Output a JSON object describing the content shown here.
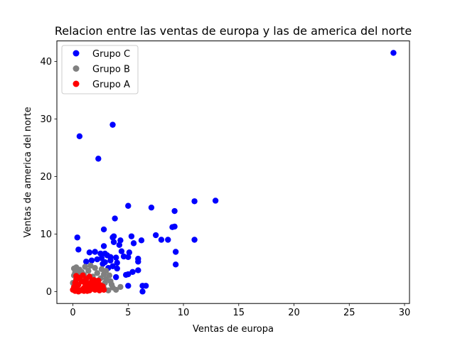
{
  "chart_data": {
    "type": "scatter",
    "title": "Relacion entre las ventas de europa y las de america del norte",
    "xlabel": "Ventas de europa",
    "ylabel": "Ventas de america del norte",
    "xlim": [
      -1.45,
      30.45
    ],
    "ylim": [
      -2.08,
      43.58
    ],
    "xticks": [
      0,
      5,
      10,
      15,
      20,
      25,
      30
    ],
    "yticks": [
      0,
      10,
      20,
      30,
      40
    ],
    "grid": false,
    "legend_position": "top-left",
    "series": [
      {
        "name": "Grupo C",
        "color": "#0000ff",
        "points": [
          [
            29.0,
            41.5
          ],
          [
            3.6,
            29.0
          ],
          [
            0.6,
            27.0
          ],
          [
            2.3,
            23.1
          ],
          [
            12.9,
            15.8
          ],
          [
            11.0,
            15.7
          ],
          [
            5.0,
            14.9
          ],
          [
            7.1,
            14.6
          ],
          [
            9.2,
            14.0
          ],
          [
            3.8,
            12.7
          ],
          [
            9.0,
            11.2
          ],
          [
            9.2,
            11.3
          ],
          [
            2.8,
            10.8
          ],
          [
            7.5,
            9.8
          ],
          [
            5.3,
            9.6
          ],
          [
            3.7,
            9.6
          ],
          [
            3.6,
            9.4
          ],
          [
            0.4,
            9.4
          ],
          [
            8.0,
            9.0
          ],
          [
            8.6,
            9.0
          ],
          [
            11.0,
            9.0
          ],
          [
            6.2,
            8.9
          ],
          [
            4.3,
            8.9
          ],
          [
            3.7,
            8.6
          ],
          [
            5.5,
            8.4
          ],
          [
            4.2,
            8.1
          ],
          [
            2.8,
            7.9
          ],
          [
            0.5,
            7.3
          ],
          [
            9.3,
            6.9
          ],
          [
            4.4,
            7.0
          ],
          [
            5.1,
            6.8
          ],
          [
            1.5,
            6.8
          ],
          [
            2.0,
            6.9
          ],
          [
            2.9,
            6.6
          ],
          [
            2.5,
            6.6
          ],
          [
            3.1,
            6.3
          ],
          [
            3.4,
            6.0
          ],
          [
            4.6,
            6.1
          ],
          [
            5.0,
            6.0
          ],
          [
            3.9,
            5.9
          ],
          [
            2.6,
            5.8
          ],
          [
            5.9,
            5.7
          ],
          [
            2.2,
            5.6
          ],
          [
            1.7,
            5.4
          ],
          [
            3.4,
            5.4
          ],
          [
            2.9,
            5.1
          ],
          [
            1.2,
            5.2
          ],
          [
            4.0,
            5.0
          ],
          [
            5.9,
            5.2
          ],
          [
            9.3,
            4.7
          ],
          [
            2.7,
            4.8
          ],
          [
            3.6,
            4.4
          ],
          [
            3.2,
            4.1
          ],
          [
            4.0,
            4.0
          ],
          [
            5.9,
            3.7
          ],
          [
            5.4,
            3.4
          ],
          [
            5.0,
            3.0
          ],
          [
            4.8,
            2.9
          ],
          [
            3.9,
            2.5
          ],
          [
            6.3,
            1.0
          ],
          [
            6.6,
            1.0
          ],
          [
            5.0,
            1.0
          ],
          [
            6.3,
            0.0
          ]
        ]
      },
      {
        "name": "Grupo B",
        "color": "#808080",
        "points": [
          [
            0.1,
            4.0
          ],
          [
            0.3,
            4.2
          ],
          [
            0.6,
            3.8
          ],
          [
            1.1,
            4.3
          ],
          [
            1.6,
            4.5
          ],
          [
            2.0,
            4.1
          ],
          [
            2.6,
            3.9
          ],
          [
            3.0,
            3.6
          ],
          [
            0.2,
            3.3
          ],
          [
            0.8,
            3.4
          ],
          [
            1.4,
            3.6
          ],
          [
            2.2,
            3.2
          ],
          [
            2.8,
            3.0
          ],
          [
            3.3,
            2.8
          ],
          [
            0.1,
            2.8
          ],
          [
            0.5,
            2.6
          ],
          [
            1.0,
            2.9
          ],
          [
            1.8,
            2.6
          ],
          [
            2.5,
            2.3
          ],
          [
            3.0,
            2.2
          ],
          [
            3.4,
            1.8
          ],
          [
            0.3,
            2.0
          ],
          [
            1.2,
            2.1
          ],
          [
            2.0,
            1.9
          ],
          [
            2.9,
            1.5
          ],
          [
            3.5,
            1.2
          ],
          [
            3.6,
            0.7
          ],
          [
            3.9,
            0.3
          ],
          [
            4.3,
            0.8
          ],
          [
            2.8,
            0.6
          ],
          [
            3.2,
            0.2
          ],
          [
            0.0,
            1.5
          ],
          [
            0.1,
            0.4
          ],
          [
            0.4,
            3.0
          ],
          [
            1.5,
            1.4
          ]
        ]
      },
      {
        "name": "Grupo A",
        "color": "#ff0000",
        "points": [
          [
            0.0,
            0.3
          ],
          [
            0.1,
            0.8
          ],
          [
            0.2,
            1.5
          ],
          [
            0.3,
            2.1
          ],
          [
            0.4,
            0.5
          ],
          [
            0.5,
            1.2
          ],
          [
            0.6,
            2.4
          ],
          [
            0.7,
            0.2
          ],
          [
            0.8,
            1.8
          ],
          [
            0.9,
            2.8
          ],
          [
            1.0,
            0.6
          ],
          [
            1.1,
            1.4
          ],
          [
            1.2,
            2.2
          ],
          [
            1.3,
            0.1
          ],
          [
            1.4,
            1.0
          ],
          [
            1.5,
            2.6
          ],
          [
            1.6,
            0.4
          ],
          [
            1.7,
            1.7
          ],
          [
            1.8,
            0.9
          ],
          [
            1.9,
            2.0
          ],
          [
            2.0,
            0.3
          ],
          [
            2.1,
            1.3
          ],
          [
            2.2,
            0.7
          ],
          [
            2.3,
            1.9
          ],
          [
            2.4,
            0.2
          ],
          [
            2.5,
            1.1
          ],
          [
            2.6,
            0.5
          ],
          [
            2.7,
            0.9
          ],
          [
            2.8,
            0.3
          ],
          [
            0.2,
            0.1
          ],
          [
            0.5,
            0.0
          ],
          [
            1.0,
            0.1
          ],
          [
            1.5,
            0.2
          ],
          [
            0.3,
            2.7
          ],
          [
            0.9,
            0.4
          ],
          [
            1.2,
            1.6
          ]
        ]
      }
    ]
  }
}
